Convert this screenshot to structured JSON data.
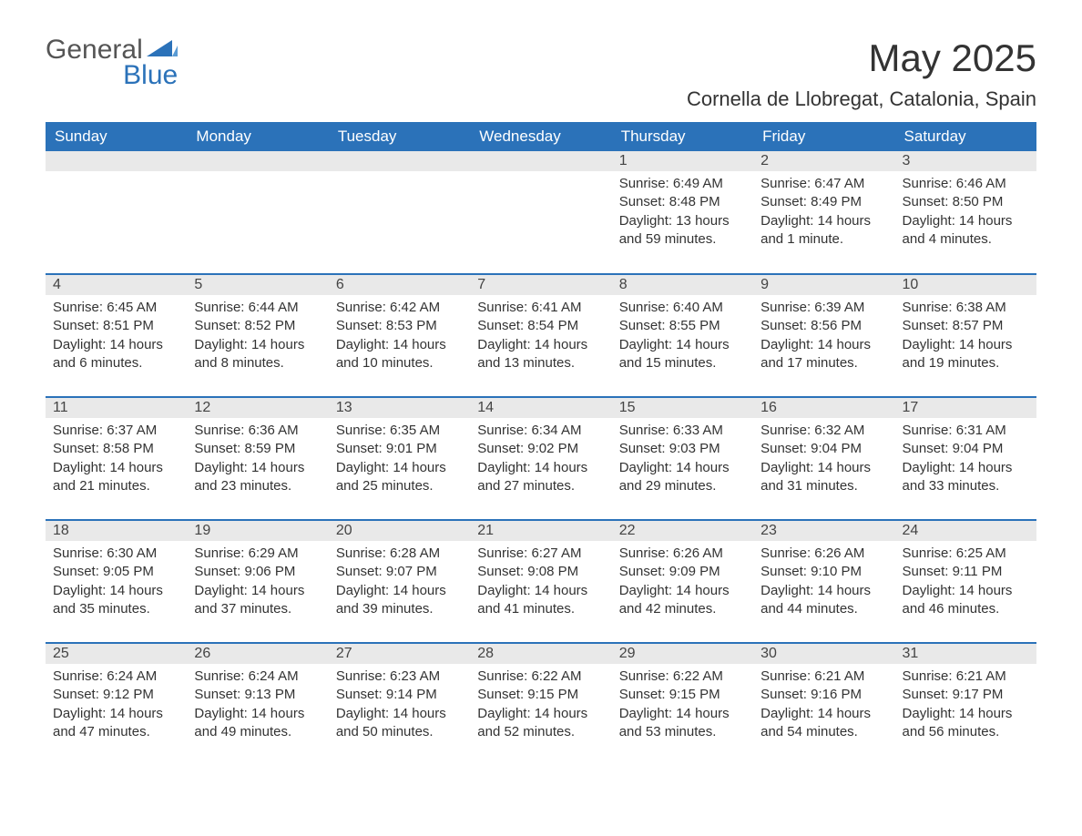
{
  "brand": {
    "general": "General",
    "blue": "Blue"
  },
  "title": "May 2025",
  "subtitle": "Cornella de Llobregat, Catalonia, Spain",
  "colors": {
    "accent": "#2b72b9",
    "header_text": "#ffffff",
    "daybar_bg": "#e9e9e9",
    "text": "#333333",
    "background": "#ffffff"
  },
  "weekdays": [
    "Sunday",
    "Monday",
    "Tuesday",
    "Wednesday",
    "Thursday",
    "Friday",
    "Saturday"
  ],
  "labels": {
    "sunrise": "Sunrise:",
    "sunset": "Sunset:",
    "daylight": "Daylight:"
  },
  "weeks": [
    [
      null,
      null,
      null,
      null,
      {
        "n": "1",
        "sunrise": "6:49 AM",
        "sunset": "8:48 PM",
        "daylight": "13 hours and 59 minutes."
      },
      {
        "n": "2",
        "sunrise": "6:47 AM",
        "sunset": "8:49 PM",
        "daylight": "14 hours and 1 minute."
      },
      {
        "n": "3",
        "sunrise": "6:46 AM",
        "sunset": "8:50 PM",
        "daylight": "14 hours and 4 minutes."
      }
    ],
    [
      {
        "n": "4",
        "sunrise": "6:45 AM",
        "sunset": "8:51 PM",
        "daylight": "14 hours and 6 minutes."
      },
      {
        "n": "5",
        "sunrise": "6:44 AM",
        "sunset": "8:52 PM",
        "daylight": "14 hours and 8 minutes."
      },
      {
        "n": "6",
        "sunrise": "6:42 AM",
        "sunset": "8:53 PM",
        "daylight": "14 hours and 10 minutes."
      },
      {
        "n": "7",
        "sunrise": "6:41 AM",
        "sunset": "8:54 PM",
        "daylight": "14 hours and 13 minutes."
      },
      {
        "n": "8",
        "sunrise": "6:40 AM",
        "sunset": "8:55 PM",
        "daylight": "14 hours and 15 minutes."
      },
      {
        "n": "9",
        "sunrise": "6:39 AM",
        "sunset": "8:56 PM",
        "daylight": "14 hours and 17 minutes."
      },
      {
        "n": "10",
        "sunrise": "6:38 AM",
        "sunset": "8:57 PM",
        "daylight": "14 hours and 19 minutes."
      }
    ],
    [
      {
        "n": "11",
        "sunrise": "6:37 AM",
        "sunset": "8:58 PM",
        "daylight": "14 hours and 21 minutes."
      },
      {
        "n": "12",
        "sunrise": "6:36 AM",
        "sunset": "8:59 PM",
        "daylight": "14 hours and 23 minutes."
      },
      {
        "n": "13",
        "sunrise": "6:35 AM",
        "sunset": "9:01 PM",
        "daylight": "14 hours and 25 minutes."
      },
      {
        "n": "14",
        "sunrise": "6:34 AM",
        "sunset": "9:02 PM",
        "daylight": "14 hours and 27 minutes."
      },
      {
        "n": "15",
        "sunrise": "6:33 AM",
        "sunset": "9:03 PM",
        "daylight": "14 hours and 29 minutes."
      },
      {
        "n": "16",
        "sunrise": "6:32 AM",
        "sunset": "9:04 PM",
        "daylight": "14 hours and 31 minutes."
      },
      {
        "n": "17",
        "sunrise": "6:31 AM",
        "sunset": "9:04 PM",
        "daylight": "14 hours and 33 minutes."
      }
    ],
    [
      {
        "n": "18",
        "sunrise": "6:30 AM",
        "sunset": "9:05 PM",
        "daylight": "14 hours and 35 minutes."
      },
      {
        "n": "19",
        "sunrise": "6:29 AM",
        "sunset": "9:06 PM",
        "daylight": "14 hours and 37 minutes."
      },
      {
        "n": "20",
        "sunrise": "6:28 AM",
        "sunset": "9:07 PM",
        "daylight": "14 hours and 39 minutes."
      },
      {
        "n": "21",
        "sunrise": "6:27 AM",
        "sunset": "9:08 PM",
        "daylight": "14 hours and 41 minutes."
      },
      {
        "n": "22",
        "sunrise": "6:26 AM",
        "sunset": "9:09 PM",
        "daylight": "14 hours and 42 minutes."
      },
      {
        "n": "23",
        "sunrise": "6:26 AM",
        "sunset": "9:10 PM",
        "daylight": "14 hours and 44 minutes."
      },
      {
        "n": "24",
        "sunrise": "6:25 AM",
        "sunset": "9:11 PM",
        "daylight": "14 hours and 46 minutes."
      }
    ],
    [
      {
        "n": "25",
        "sunrise": "6:24 AM",
        "sunset": "9:12 PM",
        "daylight": "14 hours and 47 minutes."
      },
      {
        "n": "26",
        "sunrise": "6:24 AM",
        "sunset": "9:13 PM",
        "daylight": "14 hours and 49 minutes."
      },
      {
        "n": "27",
        "sunrise": "6:23 AM",
        "sunset": "9:14 PM",
        "daylight": "14 hours and 50 minutes."
      },
      {
        "n": "28",
        "sunrise": "6:22 AM",
        "sunset": "9:15 PM",
        "daylight": "14 hours and 52 minutes."
      },
      {
        "n": "29",
        "sunrise": "6:22 AM",
        "sunset": "9:15 PM",
        "daylight": "14 hours and 53 minutes."
      },
      {
        "n": "30",
        "sunrise": "6:21 AM",
        "sunset": "9:16 PM",
        "daylight": "14 hours and 54 minutes."
      },
      {
        "n": "31",
        "sunrise": "6:21 AM",
        "sunset": "9:17 PM",
        "daylight": "14 hours and 56 minutes."
      }
    ]
  ]
}
